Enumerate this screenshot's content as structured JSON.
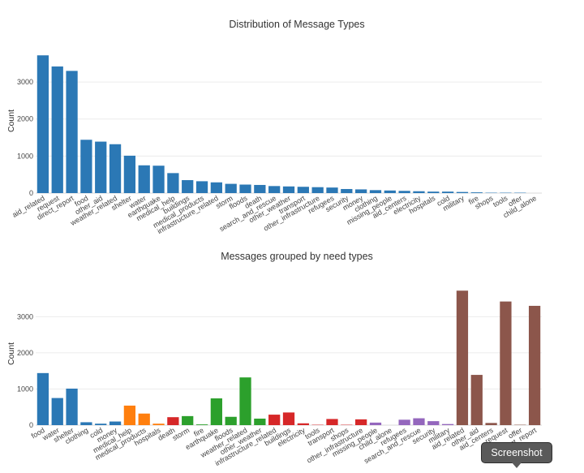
{
  "chart_data": [
    {
      "type": "bar",
      "title": "Distribution of Message Types",
      "ylabel": "Count",
      "xlabel": "",
      "ylim": [
        0,
        3900
      ],
      "yticks": [
        0,
        1000,
        2000,
        3000
      ],
      "grid": true,
      "bar_color": "#2b78b5",
      "categories": [
        "aid_related",
        "request",
        "direct_report",
        "food",
        "other_aid",
        "weather_related",
        "shelter",
        "water",
        "earthquake",
        "medical_help",
        "buildings",
        "medical_products",
        "infrastructure_related",
        "storm",
        "floods",
        "death",
        "search_and_rescue",
        "other_weather",
        "transport",
        "other_infrastructure",
        "refugees",
        "security",
        "money",
        "clothing",
        "missing_people",
        "aid_centers",
        "electricity",
        "hospitals",
        "cold",
        "military",
        "fire",
        "shops",
        "tools",
        "offer",
        "child_alone"
      ],
      "values": [
        3720,
        3420,
        3300,
        1440,
        1390,
        1320,
        1010,
        750,
        740,
        540,
        350,
        320,
        290,
        250,
        230,
        220,
        190,
        180,
        170,
        160,
        150,
        110,
        100,
        80,
        70,
        60,
        50,
        40,
        40,
        30,
        20,
        10,
        10,
        10,
        0
      ]
    },
    {
      "type": "bar",
      "title": "Messages grouped by need types",
      "ylabel": "Count",
      "xlabel": "",
      "ylim": [
        0,
        3950
      ],
      "yticks": [
        0,
        1000,
        2000,
        3000
      ],
      "grid": true,
      "categories": [
        "food",
        "water",
        "shelter",
        "clothing",
        "cold",
        "money",
        "medical_help",
        "medical_products",
        "hospitals",
        "death",
        "storm",
        "fire",
        "earthquake",
        "floods",
        "weather_related",
        "other_weather",
        "infrastructure_related",
        "buildings",
        "electricity",
        "tools",
        "transport",
        "shops",
        "other_infrastructure",
        "missing_people",
        "child_alone",
        "refugees",
        "search_and_rescue",
        "security",
        "military",
        "aid_related",
        "other_aid",
        "aid_centers",
        "request",
        "offer",
        "direct_report"
      ],
      "values": [
        1440,
        750,
        1010,
        80,
        40,
        100,
        540,
        320,
        40,
        220,
        250,
        20,
        740,
        230,
        1320,
        180,
        290,
        350,
        50,
        10,
        170,
        10,
        160,
        70,
        0,
        150,
        190,
        110,
        30,
        3720,
        1390,
        60,
        3420,
        10,
        3300
      ],
      "colors": [
        "#2b78b5",
        "#2b78b5",
        "#2b78b5",
        "#2b78b5",
        "#2b78b5",
        "#2b78b5",
        "#ff7f0e",
        "#ff7f0e",
        "#ff7f0e",
        "#d62728",
        "#2ca02c",
        "#2ca02c",
        "#2ca02c",
        "#2ca02c",
        "#2ca02c",
        "#2ca02c",
        "#d62728",
        "#d62728",
        "#d62728",
        "#d62728",
        "#d62728",
        "#d62728",
        "#d62728",
        "#9467bd",
        "#9467bd",
        "#9467bd",
        "#9467bd",
        "#9467bd",
        "#9467bd",
        "#8c564b",
        "#8c564b",
        "#8c564b",
        "#8c564b",
        "#8c564b",
        "#8c564b"
      ]
    }
  ],
  "tooltip": {
    "label": "Screenshot"
  }
}
